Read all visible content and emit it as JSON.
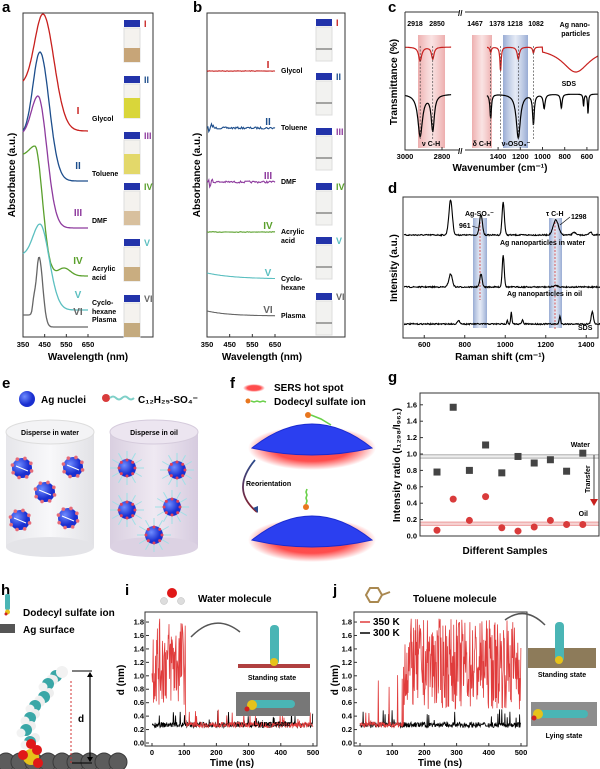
{
  "panels": {
    "a": {
      "label": "a",
      "ylabel": "Absorbance (a.u.)",
      "xlabel": "Wavelength (nm)",
      "xticks": [
        "350",
        "450",
        "550",
        "650"
      ],
      "items": [
        {
          "num": "I",
          "name": [
            "Glycol"
          ],
          "color": "#c8201e"
        },
        {
          "num": "II",
          "name": [
            "Toluene"
          ],
          "color": "#1d4e8c"
        },
        {
          "num": "III",
          "name": [
            "DMF"
          ],
          "color": "#8e3b9e"
        },
        {
          "num": "IV",
          "name": [
            "Acrylic",
            "acid"
          ],
          "color": "#5aa02c"
        },
        {
          "num": "V",
          "name": [
            "Cyclo-",
            "hexane"
          ],
          "color": "#5bbfc0"
        },
        {
          "num": "VI",
          "name": [
            "Plasma"
          ],
          "color": "#666666"
        }
      ]
    },
    "b": {
      "label": "b",
      "ylabel": "Absorbance (a.u.)",
      "xlabel": "Wavelength (nm)",
      "xticks": [
        "350",
        "450",
        "550",
        "650"
      ],
      "items": [
        {
          "num": "I",
          "name": [
            "Glycol"
          ]
        },
        {
          "num": "II",
          "name": [
            "Toluene"
          ]
        },
        {
          "num": "III",
          "name": [
            "DMF"
          ]
        },
        {
          "num": "IV",
          "name": [
            "Acrylic",
            "acid"
          ]
        },
        {
          "num": "V",
          "name": [
            "Cyclo-",
            "hexane"
          ]
        },
        {
          "num": "VI",
          "name": [
            "Plasma"
          ]
        }
      ]
    },
    "c": {
      "label": "c",
      "ylabel": "Transmittance (%)",
      "xlabel": "Wavenumber (cm⁻¹)",
      "xticks_left": [
        "3000",
        "2800"
      ],
      "xticks_right": [
        "1400",
        "1200",
        "1000",
        "800",
        "600"
      ],
      "peaks": [
        "2918",
        "2850",
        "1467",
        "1378",
        "1218",
        "1082"
      ],
      "bands": [
        "ν C-H",
        "δ C-H",
        "ν-OSO₃⁻"
      ],
      "series": [
        "Ag nano-",
        "particles",
        "SDS"
      ]
    },
    "d": {
      "label": "d",
      "ylabel": "Intensity (a.u.)",
      "xlabel": "Raman shift (cm⁻¹)",
      "xticks": [
        "600",
        "800",
        "1000",
        "1200",
        "1400"
      ],
      "annotations": [
        "Ag-SO₄⁻",
        "961",
        "τ C-H",
        "1298"
      ],
      "series": [
        "Ag nanoparticles in water",
        "Ag nanoparticles in oil",
        "SDS"
      ]
    },
    "e": {
      "label": "e",
      "legend": [
        "Ag nuclei",
        "C₁₂H₂₅-SO₄⁻"
      ],
      "containers": [
        "Disperse in water",
        "Disperse in oil"
      ]
    },
    "f": {
      "label": "f",
      "legend": [
        "SERS hot spot",
        "Dodecyl sulfate ion"
      ],
      "arrow": "Reorientation"
    },
    "g": {
      "label": "g",
      "ylabel": "Intensity ratio (I₁₂₉₈/I₉₆₁)",
      "xlabel": "Different Samples",
      "yticks": [
        "0.0",
        "0.2",
        "0.4",
        "0.6",
        "0.8",
        "1.0",
        "1.2",
        "1.4",
        "1.6"
      ],
      "water": "Water",
      "oil": "Oil",
      "transfer": "Transfer"
    },
    "h": {
      "label": "h",
      "legend": [
        "Dodecyl sulfate ion",
        "Ag surface"
      ],
      "d": "d"
    },
    "i": {
      "label": "i",
      "title": "Water molecule",
      "xlabel": "Time (ns)",
      "ylabel": "d (nm)",
      "xticks": [
        "0",
        "100",
        "200",
        "300",
        "400",
        "500"
      ],
      "yticks": [
        "0.0",
        "0.2",
        "0.4",
        "0.6",
        "0.8",
        "1.0",
        "1.2",
        "1.4",
        "1.6",
        "1.8"
      ],
      "states": [
        "Standing state",
        "Lying state"
      ]
    },
    "j": {
      "label": "j",
      "title": "Toluene molecule",
      "xlabel": "Time (ns)",
      "ylabel": "d (nm)",
      "xticks": [
        "0",
        "100",
        "200",
        "300",
        "400",
        "500"
      ],
      "yticks": [
        "0.0",
        "0.2",
        "0.4",
        "0.6",
        "0.8",
        "1.0",
        "1.2",
        "1.4",
        "1.6",
        "1.8"
      ],
      "legend": [
        "350 K",
        "300 K"
      ],
      "states": [
        "Standing state",
        "Lying state"
      ]
    }
  },
  "chart_data": [
    {
      "panel": "a",
      "type": "line",
      "xlabel": "Wavelength (nm)",
      "ylabel": "Absorbance (a.u.)",
      "xlim": [
        350,
        650
      ],
      "series": [
        {
          "name": "Glycol",
          "peak_nm": 442
        },
        {
          "name": "Toluene",
          "peak_nm": 428
        },
        {
          "name": "DMF",
          "peak_nm": 419
        },
        {
          "name": "Acrylic acid",
          "peak_nm": 405
        },
        {
          "name": "Cyclo-hexane",
          "peak_nm": 428
        },
        {
          "name": "Plasma",
          "peak_nm": 424
        }
      ]
    },
    {
      "panel": "b",
      "type": "line",
      "xlabel": "Wavelength (nm)",
      "ylabel": "Absorbance (a.u.)",
      "xlim": [
        350,
        650
      ],
      "note_flat": true,
      "series": [
        {
          "name": "Glycol"
        },
        {
          "name": "Toluene"
        },
        {
          "name": "DMF"
        },
        {
          "name": "Acrylic acid"
        },
        {
          "name": "Cyclo-hexane"
        },
        {
          "name": "Plasma"
        }
      ]
    },
    {
      "panel": "c",
      "type": "line",
      "xlabel": "Wavenumber (cm-1)",
      "ylabel": "Transmittance (%)",
      "x_break": [
        2750,
        1500
      ],
      "series": [
        {
          "name": "Ag nanoparticles",
          "dips": [
            2918,
            2850,
            1467,
            1378,
            1218,
            1082
          ]
        },
        {
          "name": "SDS",
          "dips": [
            2918,
            2850,
            1467,
            1218,
            1082,
            985,
            830,
            630,
            590
          ]
        }
      ]
    },
    {
      "panel": "d",
      "type": "line",
      "xlabel": "Raman shift (cm-1)",
      "ylabel": "Intensity (a.u.)",
      "xlim": [
        500,
        1500
      ],
      "series": [
        {
          "name": "Ag nanoparticles in water",
          "peaks": [
            730,
            880,
            990,
            1250
          ]
        },
        {
          "name": "Ag nanoparticles in oil",
          "peaks": [
            730,
            880,
            990
          ]
        },
        {
          "name": "SDS",
          "peaks": [
            770,
            1010,
            1085,
            1270,
            1430
          ]
        }
      ]
    },
    {
      "panel": "g",
      "type": "scatter",
      "xlabel": "Different Samples",
      "ylabel": "Intensity ratio (I1298/I961)",
      "ylim": [
        0,
        1.7
      ],
      "categories": [
        1,
        2,
        3,
        4,
        5,
        6,
        7,
        8,
        9,
        10
      ],
      "series": [
        {
          "name": "Water",
          "values": [
            0.78,
            1.57,
            0.8,
            1.11,
            0.77,
            0.97,
            0.89,
            0.93,
            0.79,
            1.01
          ],
          "color": "#444444",
          "marker": "square"
        },
        {
          "name": "Oil",
          "values": [
            0.07,
            0.45,
            0.19,
            0.48,
            0.1,
            0.06,
            0.11,
            0.19,
            0.14,
            0.14
          ],
          "color": "#d93b3b",
          "marker": "circle"
        }
      ],
      "bands": {
        "Water": [
          0.95,
          0.99
        ],
        "Oil": [
          0.13,
          0.17
        ]
      }
    },
    {
      "panel": "i",
      "type": "line",
      "xlabel": "Time (ns)",
      "ylabel": "d (nm)",
      "xlim": [
        0,
        500
      ],
      "ylim": [
        0,
        1.9
      ],
      "series": [
        {
          "name": "350 K",
          "color": "#e03c3c",
          "segments": [
            {
              "t": [
                0,
                105
              ],
              "range": [
                0.55,
                1.85
              ]
            },
            {
              "t": [
                105,
                500
              ],
              "range": [
                0.22,
                0.45
              ]
            }
          ]
        },
        {
          "name": "300 K",
          "color": "#000000",
          "segments": [
            {
              "t": [
                0,
                500
              ],
              "range": [
                0.22,
                0.45
              ]
            }
          ]
        }
      ]
    },
    {
      "panel": "j",
      "type": "line",
      "xlabel": "Time (ns)",
      "ylabel": "d (nm)",
      "xlim": [
        0,
        500
      ],
      "ylim": [
        0,
        1.9
      ],
      "series": [
        {
          "name": "350 K",
          "color": "#e03c3c",
          "segments": [
            {
              "t": [
                0,
                40
              ],
              "range": [
                0.22,
                0.5
              ]
            },
            {
              "t": [
                40,
                135
              ],
              "range": [
                0.5,
                1.0
              ]
            },
            {
              "t": [
                135,
                500
              ],
              "range": [
                0.5,
                1.85
              ]
            }
          ]
        },
        {
          "name": "300 K",
          "color": "#000000",
          "segments": [
            {
              "t": [
                0,
                500
              ],
              "range": [
                0.22,
                0.45
              ]
            }
          ]
        }
      ]
    }
  ]
}
